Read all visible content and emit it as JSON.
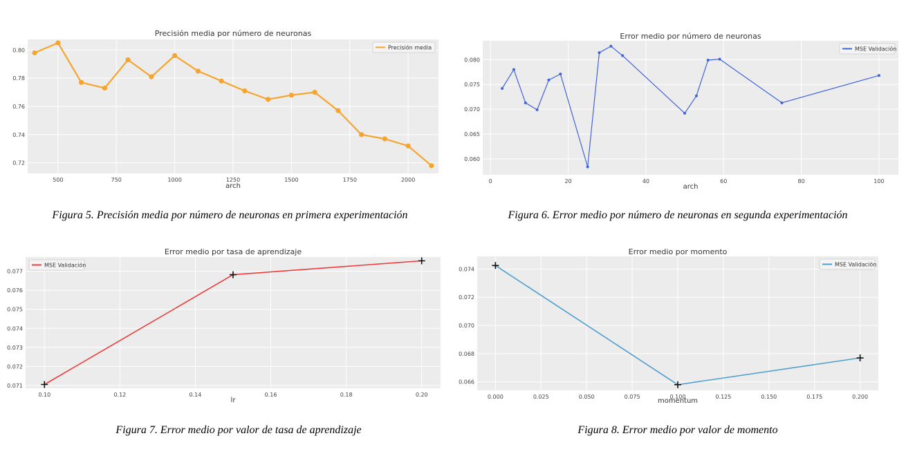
{
  "chart_data": [
    {
      "type": "line",
      "title": "Precisión media por número de neuronas",
      "xlabel": "arch",
      "ylabel": "",
      "xlim": [
        370,
        2130
      ],
      "ylim": [
        0.7125,
        0.8075
      ],
      "xticks": [
        500,
        750,
        1000,
        1250,
        1500,
        1750,
        2000
      ],
      "xtick_labels": [
        "500",
        "750",
        "1000",
        "1250",
        "1500",
        "1750",
        "2000"
      ],
      "yticks": [
        0.72,
        0.74,
        0.76,
        0.78,
        0.8
      ],
      "ytick_labels": [
        "0.72",
        "0.74",
        "0.76",
        "0.78",
        "0.80"
      ],
      "legend_position": "top-right",
      "marker": "circle",
      "series": [
        {
          "name": "Precisión media",
          "color": "#f5a52e",
          "x": [
            400,
            500,
            600,
            700,
            800,
            900,
            1000,
            1100,
            1200,
            1300,
            1400,
            1500,
            1600,
            1700,
            1800,
            1900,
            2000,
            2100
          ],
          "y": [
            0.798,
            0.805,
            0.777,
            0.773,
            0.793,
            0.781,
            0.796,
            0.785,
            0.778,
            0.771,
            0.765,
            0.768,
            0.77,
            0.757,
            0.74,
            0.737,
            0.732,
            0.718
          ]
        }
      ]
    },
    {
      "type": "line",
      "title": "Error medio por número de neuronas",
      "xlabel": "arch",
      "ylabel": "",
      "xlim": [
        -2,
        105
      ],
      "ylim": [
        0.0568,
        0.0838
      ],
      "xticks": [
        0,
        20,
        40,
        60,
        80,
        100
      ],
      "xtick_labels": [
        "0",
        "20",
        "40",
        "60",
        "80",
        "100"
      ],
      "yticks": [
        0.06,
        0.065,
        0.07,
        0.075,
        0.08
      ],
      "ytick_labels": [
        "0.060",
        "0.065",
        "0.070",
        "0.075",
        "0.080"
      ],
      "legend_position": "top-right",
      "marker": "dot",
      "series": [
        {
          "name": "MSE Validación",
          "color": "#3f63d8",
          "x": [
            3,
            6,
            9,
            12,
            15,
            18,
            25,
            28,
            31,
            34,
            50,
            53,
            56,
            59,
            75,
            100
          ],
          "y": [
            0.0742,
            0.078,
            0.0713,
            0.0699,
            0.0759,
            0.0771,
            0.0584,
            0.0814,
            0.0827,
            0.0808,
            0.0692,
            0.0727,
            0.0799,
            0.0801,
            0.0713,
            0.0768
          ]
        }
      ]
    },
    {
      "type": "line",
      "title": "Error medio por tasa de aprendizaje",
      "xlabel": "lr",
      "ylabel": "",
      "xlim": [
        0.095,
        0.205
      ],
      "ylim": [
        0.07085,
        0.07775
      ],
      "xticks": [
        0.1,
        0.12,
        0.14,
        0.16,
        0.18,
        0.2
      ],
      "xtick_labels": [
        "0.10",
        "0.12",
        "0.14",
        "0.16",
        "0.18",
        "0.20"
      ],
      "yticks": [
        0.071,
        0.072,
        0.073,
        0.074,
        0.075,
        0.076,
        0.077
      ],
      "ytick_labels": [
        "0.071",
        "0.072",
        "0.073",
        "0.074",
        "0.075",
        "0.076",
        "0.077"
      ],
      "legend_position": "top-left",
      "marker": "plus",
      "series": [
        {
          "name": "MSE Validación",
          "color": "#ee3b3b",
          "x": [
            0.1,
            0.15,
            0.2
          ],
          "y": [
            0.07105,
            0.07682,
            0.07755
          ]
        }
      ]
    },
    {
      "type": "line",
      "title": "Error medio por momento",
      "xlabel": "momentum",
      "ylabel": "",
      "xlim": [
        -0.01,
        0.21
      ],
      "ylim": [
        0.0654,
        0.0749
      ],
      "xticks": [
        0.0,
        0.025,
        0.05,
        0.075,
        0.1,
        0.125,
        0.15,
        0.175,
        0.2
      ],
      "xtick_labels": [
        "0.000",
        "0.025",
        "0.050",
        "0.075",
        "0.100",
        "0.125",
        "0.150",
        "0.175",
        "0.200"
      ],
      "yticks": [
        0.066,
        0.068,
        0.07,
        0.072,
        0.074
      ],
      "ytick_labels": [
        "0.066",
        "0.068",
        "0.070",
        "0.072",
        "0.074"
      ],
      "legend_position": "top-right",
      "marker": "plus",
      "series": [
        {
          "name": "MSE Validación",
          "color": "#4d9fcf",
          "x": [
            0.0,
            0.1,
            0.2
          ],
          "y": [
            0.07425,
            0.0658,
            0.0677
          ]
        }
      ]
    }
  ],
  "captions": [
    "Figura 5. Precisión media por número de neuronas en primera experimentación",
    "Figura 6. Error medio por número de neuronas en segunda experimentación",
    "Figura 7. Error medio por valor de tasa de aprendizaje",
    "Figura 8. Error medio por valor de momento"
  ]
}
